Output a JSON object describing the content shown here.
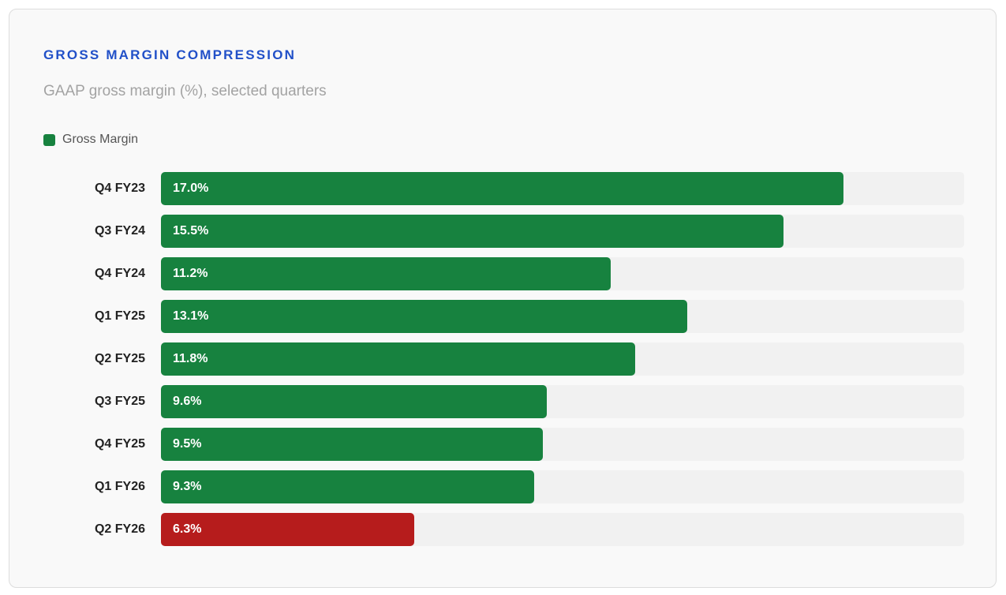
{
  "header": {
    "title": "GROSS MARGIN COMPRESSION",
    "subtitle": "GAAP gross margin (%), selected quarters"
  },
  "legend": {
    "label": "Gross Margin",
    "color": "#17823f"
  },
  "colors": {
    "normal": "#17823f",
    "highlight": "#b61c1c",
    "track": "#f1f1f1"
  },
  "chart_data": {
    "type": "bar",
    "orientation": "horizontal",
    "title": "GROSS MARGIN COMPRESSION",
    "subtitle": "GAAP gross margin (%), selected quarters",
    "xlabel": "",
    "ylabel": "",
    "xlim": [
      0,
      20
    ],
    "legend_position": "top-left",
    "categories": [
      "Q4 FY23",
      "Q3 FY24",
      "Q4 FY24",
      "Q1 FY25",
      "Q2 FY25",
      "Q3 FY25",
      "Q4 FY25",
      "Q1 FY26",
      "Q2 FY26"
    ],
    "series": [
      {
        "name": "Gross Margin",
        "values": [
          17.0,
          15.5,
          11.2,
          13.1,
          11.8,
          9.6,
          9.5,
          9.3,
          6.3
        ],
        "labels": [
          "17.0%",
          "15.5%",
          "11.2%",
          "13.1%",
          "11.8%",
          "9.6%",
          "9.5%",
          "9.3%",
          "6.3%"
        ],
        "highlight": [
          false,
          false,
          false,
          false,
          false,
          false,
          false,
          false,
          true
        ]
      }
    ]
  }
}
